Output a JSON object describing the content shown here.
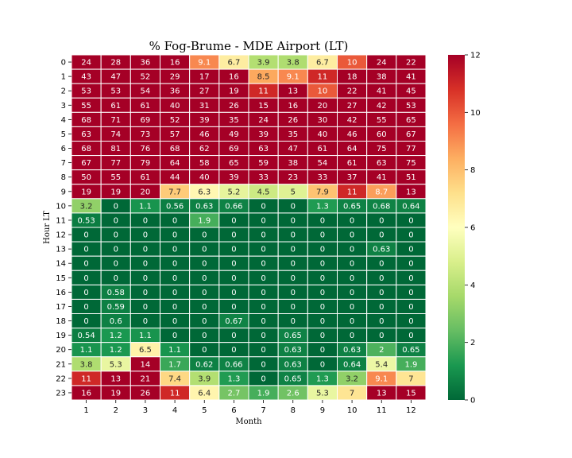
{
  "chart_data": {
    "type": "heatmap",
    "title": "% Fog-Brume - MDE Airport (LT)",
    "xlabel": "Month",
    "ylabel": "Hour LT",
    "x_categories": [
      "1",
      "2",
      "3",
      "4",
      "5",
      "6",
      "7",
      "8",
      "9",
      "10",
      "11",
      "12"
    ],
    "y_categories": [
      "0",
      "1",
      "2",
      "3",
      "4",
      "5",
      "6",
      "7",
      "8",
      "9",
      "10",
      "11",
      "12",
      "13",
      "14",
      "15",
      "16",
      "17",
      "18",
      "19",
      "20",
      "21",
      "22",
      "23"
    ],
    "values": [
      [
        "24",
        "28",
        "36",
        "16",
        "9.1",
        "6.7",
        "3.9",
        "3.8",
        "6.7",
        "10",
        "24",
        "22"
      ],
      [
        "43",
        "47",
        "52",
        "29",
        "17",
        "16",
        "8.5",
        "9.1",
        "11",
        "18",
        "38",
        "41"
      ],
      [
        "53",
        "53",
        "54",
        "36",
        "27",
        "19",
        "11",
        "13",
        "10",
        "22",
        "41",
        "45"
      ],
      [
        "55",
        "61",
        "61",
        "40",
        "31",
        "26",
        "15",
        "16",
        "20",
        "27",
        "42",
        "53"
      ],
      [
        "68",
        "71",
        "69",
        "52",
        "39",
        "35",
        "24",
        "26",
        "30",
        "42",
        "55",
        "65"
      ],
      [
        "63",
        "74",
        "73",
        "57",
        "46",
        "49",
        "39",
        "35",
        "40",
        "46",
        "60",
        "67"
      ],
      [
        "68",
        "81",
        "76",
        "68",
        "62",
        "69",
        "63",
        "47",
        "61",
        "64",
        "75",
        "77"
      ],
      [
        "67",
        "77",
        "79",
        "64",
        "58",
        "65",
        "59",
        "38",
        "54",
        "61",
        "63",
        "75"
      ],
      [
        "50",
        "55",
        "61",
        "44",
        "40",
        "39",
        "33",
        "23",
        "33",
        "37",
        "41",
        "51"
      ],
      [
        "19",
        "19",
        "20",
        "7.7",
        "6.3",
        "5.2",
        "4.5",
        "5",
        "7.9",
        "11",
        "8.7",
        "13"
      ],
      [
        "3.2",
        "0",
        "1.1",
        "0.56",
        "0.63",
        "0.66",
        "0",
        "0",
        "1.3",
        "0.65",
        "0.68",
        "0.64"
      ],
      [
        "0.53",
        "0",
        "0",
        "0",
        "1.9",
        "0",
        "0",
        "0",
        "0",
        "0",
        "0",
        "0"
      ],
      [
        "0",
        "0",
        "0",
        "0",
        "0",
        "0",
        "0",
        "0",
        "0",
        "0",
        "0",
        "0"
      ],
      [
        "0",
        "0",
        "0",
        "0",
        "0",
        "0",
        "0",
        "0",
        "0",
        "0",
        "0.63",
        "0"
      ],
      [
        "0",
        "0",
        "0",
        "0",
        "0",
        "0",
        "0",
        "0",
        "0",
        "0",
        "0",
        "0"
      ],
      [
        "0",
        "0",
        "0",
        "0",
        "0",
        "0",
        "0",
        "0",
        "0",
        "0",
        "0",
        "0"
      ],
      [
        "0",
        "0.58",
        "0",
        "0",
        "0",
        "0",
        "0",
        "0",
        "0",
        "0",
        "0",
        "0"
      ],
      [
        "0",
        "0.59",
        "0",
        "0",
        "0",
        "0",
        "0",
        "0",
        "0",
        "0",
        "0",
        "0"
      ],
      [
        "0",
        "0.6",
        "0",
        "0",
        "0",
        "0.67",
        "0",
        "0",
        "0",
        "0",
        "0",
        "0"
      ],
      [
        "0.54",
        "1.2",
        "1.1",
        "0",
        "0",
        "0",
        "0",
        "0.65",
        "0",
        "0",
        "0",
        "0"
      ],
      [
        "1.1",
        "1.2",
        "6.5",
        "1.1",
        "0",
        "0",
        "0",
        "0.63",
        "0",
        "0.63",
        "2",
        "0.65"
      ],
      [
        "3.8",
        "5.3",
        "14",
        "1.7",
        "0.62",
        "0.66",
        "0",
        "0.63",
        "0",
        "0.64",
        "5.4",
        "1.9"
      ],
      [
        "11",
        "13",
        "21",
        "7.4",
        "3.9",
        "1.3",
        "0",
        "0.65",
        "1.3",
        "3.2",
        "9.1",
        "7"
      ],
      [
        "16",
        "19",
        "26",
        "11",
        "6.4",
        "2.7",
        "1.9",
        "2.6",
        "5.3",
        "7",
        "13",
        "15"
      ]
    ],
    "colorscale": "RdYlGn_r",
    "zlim": [
      0,
      12
    ],
    "colorbar_ticks": [
      "0",
      "2",
      "4",
      "6",
      "8",
      "10",
      "12"
    ],
    "grid_line_color": "#ffffff"
  }
}
